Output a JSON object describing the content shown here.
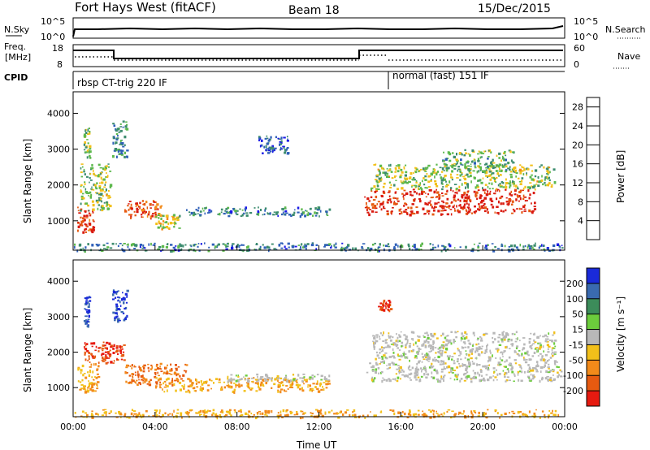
{
  "header": {
    "title": "Fort Hays West (fitACF)",
    "beam": "Beam 18",
    "date": "15/Dec/2015"
  },
  "status_panels": {
    "nsky_label": "N.Sky",
    "nsky_ticks": [
      "10^5",
      "10^0"
    ],
    "nsearch_label": "N.Search",
    "freq_label_1": "Freq.",
    "freq_label_2": "[MHz]",
    "freq_ticks": [
      "18",
      "8"
    ],
    "nave_ticks": [
      "60",
      "0"
    ],
    "nave_label": "Nave",
    "cpid_label": "CPID",
    "cpid_segments": [
      {
        "text": "rbsp CT-trig 220 IF",
        "start_hour": 0.0
      },
      {
        "text": "normal (fast) 151 IF",
        "start_hour": 15.6
      }
    ]
  },
  "chart_data": [
    {
      "type": "heatmap",
      "name": "power",
      "ylabel": "Slant Range [km]",
      "yticks": [
        "1000",
        "2000",
        "3000",
        "4000"
      ],
      "ylim": [
        180,
        4600
      ],
      "xlim_hours": [
        0,
        24
      ],
      "colorbar_label": "Power [dB]",
      "colorbar_ticks": [
        "4",
        "8",
        "12",
        "16",
        "20",
        "24",
        "28"
      ],
      "colorbar_range": [
        0,
        30
      ],
      "colors": [
        "#1a1ae6",
        "#2e5fb8",
        "#3c8c6e",
        "#5cb84c",
        "#f2c01a",
        "#f28a1a",
        "#e65a10",
        "#d91a0f"
      ],
      "echo_regions": [
        {
          "t0": 0.2,
          "t1": 1.0,
          "r0": 700,
          "r1": 1400,
          "value": 27
        },
        {
          "t0": 0.3,
          "t1": 1.8,
          "r0": 1300,
          "r1": 2600,
          "value": 14
        },
        {
          "t0": 0.5,
          "t1": 0.8,
          "r0": 2700,
          "r1": 3600,
          "value": 12
        },
        {
          "t0": 1.9,
          "t1": 2.6,
          "r0": 2800,
          "r1": 3800,
          "value": 10
        },
        {
          "t0": 2.5,
          "t1": 4.3,
          "r0": 1100,
          "r1": 1600,
          "value": 24
        },
        {
          "t0": 4.0,
          "t1": 5.2,
          "r0": 800,
          "r1": 1200,
          "value": 16
        },
        {
          "t0": 5.5,
          "t1": 12.5,
          "r0": 1150,
          "r1": 1400,
          "value": 8
        },
        {
          "t0": 9.0,
          "t1": 10.5,
          "r0": 2900,
          "r1": 3400,
          "value": 6
        },
        {
          "t0": 14.2,
          "t1": 22.5,
          "r0": 1200,
          "r1": 1900,
          "value": 28
        },
        {
          "t0": 14.5,
          "t1": 23.5,
          "r0": 1900,
          "r1": 2600,
          "value": 14
        },
        {
          "t0": 18.0,
          "t1": 21.5,
          "r0": 2400,
          "r1": 3000,
          "value": 12
        },
        {
          "t0": 0.0,
          "t1": 24.0,
          "r0": 180,
          "r1": 400,
          "value": 8
        }
      ]
    },
    {
      "type": "heatmap",
      "name": "velocity",
      "ylabel": "Slant Range [km]",
      "yticks": [
        "1000",
        "2000",
        "3000",
        "4000"
      ],
      "ylim": [
        180,
        4600
      ],
      "xlabel": "Time UT",
      "xticks": [
        "00:00",
        "04:00",
        "08:00",
        "12:00",
        "16:00",
        "20:00",
        "00:00"
      ],
      "xtick_hours": [
        0,
        4,
        8,
        12,
        16,
        20,
        24
      ],
      "colorbar_label": "Velocity [m s⁻¹]",
      "colorbar_ticks": [
        "200",
        "100",
        "50",
        "15",
        "-15",
        "-50",
        "-100",
        "-200"
      ],
      "colors": [
        "#1a2ad9",
        "#3a6ab0",
        "#3c8c5a",
        "#6ccc3c",
        "#b8b8b8",
        "#f2c01a",
        "#f28a1a",
        "#e65a10",
        "#e61a10"
      ],
      "echo_regions": [
        {
          "t0": 0.2,
          "t1": 1.2,
          "r0": 900,
          "r1": 1700,
          "value": -50
        },
        {
          "t0": 0.5,
          "t1": 2.5,
          "r0": 1700,
          "r1": 2300,
          "value": -200
        },
        {
          "t0": 0.5,
          "t1": 0.8,
          "r0": 2700,
          "r1": 3600,
          "value": 200
        },
        {
          "t0": 1.9,
          "t1": 2.6,
          "r0": 2900,
          "r1": 3800,
          "value": 200
        },
        {
          "t0": 2.5,
          "t1": 5.5,
          "r0": 1100,
          "r1": 1700,
          "value": -100
        },
        {
          "t0": 4.0,
          "t1": 12.5,
          "r0": 900,
          "r1": 1300,
          "value": -50
        },
        {
          "t0": 7.5,
          "t1": 12.5,
          "r0": 1200,
          "r1": 1400,
          "value": 0
        },
        {
          "t0": 14.3,
          "t1": 23.8,
          "r0": 1200,
          "r1": 1900,
          "value": 0
        },
        {
          "t0": 14.6,
          "t1": 23.5,
          "r0": 1900,
          "r1": 2600,
          "value": 0
        },
        {
          "t0": 14.8,
          "t1": 15.5,
          "r0": 3200,
          "r1": 3500,
          "value": -200
        },
        {
          "t0": 0.0,
          "t1": 24.0,
          "r0": 180,
          "r1": 400,
          "value": -50
        }
      ]
    }
  ]
}
